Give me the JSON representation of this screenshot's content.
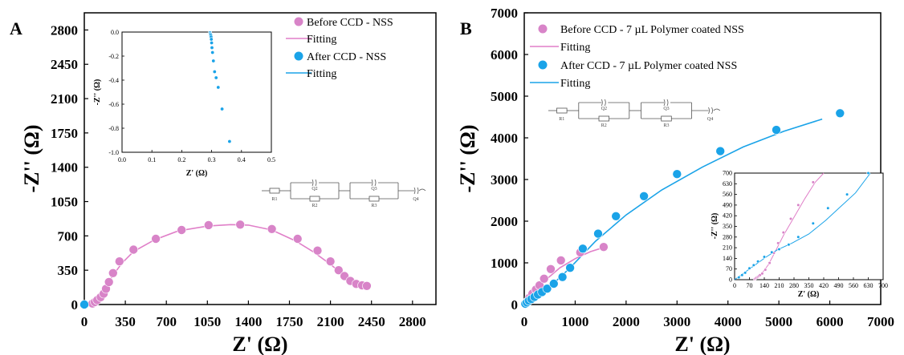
{
  "chart_data": [
    {
      "panel": "A",
      "type": "scatter",
      "xlabel": "Z' (Ω)",
      "ylabel": "-Z'' (Ω)",
      "xlim": [
        0,
        3000
      ],
      "ylim": [
        0,
        2975
      ],
      "xticks": [
        0,
        350,
        700,
        1050,
        1400,
        1750,
        2100,
        2450,
        2800
      ],
      "yticks": [
        0,
        350,
        700,
        1050,
        1400,
        1750,
        2100,
        2450,
        2800
      ],
      "legend": {
        "position": "top-right",
        "entries": [
          "Before CCD -  NSS",
          "Fitting",
          "After CCD - NSS",
          "Fitting"
        ]
      },
      "series": [
        {
          "name": "Before CCD -  NSS",
          "kind": "points",
          "color": "#d884c8",
          "x": [
            70,
            90,
            110,
            140,
            165,
            185,
            210,
            245,
            300,
            420,
            610,
            830,
            1060,
            1330,
            1600,
            1820,
            1990,
            2100,
            2170,
            2220,
            2270,
            2320,
            2370,
            2410
          ],
          "y": [
            10,
            25,
            45,
            75,
            110,
            160,
            230,
            320,
            440,
            560,
            670,
            760,
            810,
            815,
            770,
            670,
            550,
            440,
            350,
            290,
            240,
            210,
            195,
            190
          ]
        },
        {
          "name": "Fitting",
          "kind": "line",
          "color": "#e07fc8",
          "x": [
            70,
            120,
            180,
            240,
            320,
            420,
            600,
            800,
            1050,
            1250,
            1400,
            1600,
            1800,
            1950,
            2100,
            2200,
            2280,
            2360,
            2420
          ],
          "y": [
            0,
            60,
            160,
            290,
            420,
            540,
            660,
            750,
            800,
            815,
            810,
            760,
            650,
            540,
            410,
            310,
            250,
            205,
            190
          ]
        },
        {
          "name": "After CCD - NSS",
          "kind": "points",
          "color": "#1aa3e8",
          "x": [
            0.3
          ],
          "y": [
            0.0
          ]
        }
      ],
      "inset": {
        "xlabel": "Z' (Ω)",
        "ylabel": "-Z'' (Ω)",
        "xlim": [
          0,
          0.5
        ],
        "ylim": [
          -1.0,
          0
        ],
        "xticks": [
          0.0,
          0.1,
          0.2,
          0.3,
          0.4,
          0.5
        ],
        "yticks": [
          0.0,
          -0.2,
          -0.4,
          -0.6,
          -0.8,
          -1.0
        ],
        "series": [
          {
            "name": "After CCD - NSS",
            "kind": "points",
            "color": "#1aa3e8",
            "x": [
              0.295,
              0.296,
              0.297,
              0.298,
              0.299,
              0.3,
              0.301,
              0.303,
              0.306,
              0.31,
              0.315,
              0.322,
              0.335,
              0.36
            ],
            "y": [
              -0.005,
              -0.015,
              -0.025,
              -0.04,
              -0.06,
              -0.09,
              -0.13,
              -0.17,
              -0.24,
              -0.33,
              -0.38,
              -0.46,
              -0.64,
              -0.91
            ]
          }
        ]
      },
      "circuit_labels": [
        "R1",
        "Q2",
        "R2",
        "Q3",
        "R3",
        "Q4"
      ]
    },
    {
      "panel": "B",
      "type": "scatter",
      "xlabel": "Z' (Ω)",
      "ylabel": "-Z'' (Ω)",
      "xlim": [
        0,
        7000
      ],
      "ylim": [
        0,
        7000
      ],
      "xticks": [
        0,
        1000,
        2000,
        3000,
        4000,
        5000,
        6000,
        7000
      ],
      "yticks": [
        0,
        1000,
        2000,
        3000,
        4000,
        5000,
        6000,
        7000
      ],
      "legend": {
        "position": "top-left",
        "entries": [
          "Before CCD - 7 µL Polymer coated NSS",
          "Fitting",
          "After CCD - 7 µL Polymer coated NSS",
          "Fitting"
        ]
      },
      "series": [
        {
          "name": "Before CCD - 7 µL Polymer coated NSS",
          "kind": "points",
          "color": "#d884c8",
          "x": [
            50,
            100,
            160,
            230,
            300,
            390,
            520,
            720,
            1100,
            1560
          ],
          "y": [
            60,
            160,
            260,
            360,
            460,
            620,
            850,
            1060,
            1250,
            1380
          ]
        },
        {
          "name": "Fitting",
          "kind": "line",
          "color": "#e07fc8",
          "x": [
            0,
            100,
            250,
            450,
            700,
            1000,
            1300,
            1560
          ],
          "y": [
            0,
            180,
            380,
            620,
            880,
            1100,
            1270,
            1370
          ]
        },
        {
          "name": "After CCD - 7 µL Polymer coated NSS",
          "kind": "points",
          "color": "#1aa3e8",
          "x": [
            20,
            50,
            90,
            140,
            200,
            270,
            350,
            450,
            580,
            750,
            900,
            1150,
            1450,
            1800,
            2350,
            3000,
            3850,
            4950,
            6200
          ],
          "y": [
            20,
            50,
            90,
            130,
            180,
            240,
            300,
            380,
            500,
            660,
            880,
            1340,
            1700,
            2120,
            2600,
            3130,
            3680,
            4190,
            4590
          ]
        },
        {
          "name": "Fitting",
          "kind": "line",
          "color": "#1aa3e8",
          "x": [
            0,
            200,
            500,
            900,
            1400,
            2000,
            2700,
            3500,
            4300,
            5100,
            5850
          ],
          "y": [
            0,
            150,
            420,
            880,
            1520,
            2150,
            2750,
            3300,
            3780,
            4160,
            4450
          ]
        }
      ],
      "inset": {
        "xlabel": "Z' (Ω)",
        "ylabel": "-Z'' (Ω)",
        "xlim": [
          0,
          700
        ],
        "ylim": [
          0,
          700
        ],
        "xticks": [
          0,
          70,
          140,
          210,
          280,
          350,
          420,
          490,
          560,
          630,
          700
        ],
        "yticks": [
          0,
          70,
          140,
          210,
          280,
          350,
          420,
          490,
          560,
          630,
          700
        ],
        "series": [
          {
            "name": "Before CCD - 7 µL Polymer coated NSS",
            "kind": "points",
            "color": "#d884c8",
            "x": [
              95,
              100,
              105,
              110,
              115,
              120,
              130,
              145,
              165,
              185,
              205,
              230,
              265,
              300,
              370
            ],
            "y": [
              5,
              10,
              15,
              20,
              25,
              30,
              40,
              65,
              110,
              175,
              240,
              310,
              400,
              490,
              640
            ]
          },
          {
            "name": "Fitting",
            "kind": "line",
            "color": "#e07fc8",
            "x": [
              90,
              110,
              130,
              160,
              190,
              230,
              280,
              330,
              380,
              420
            ],
            "y": [
              0,
              20,
              45,
              100,
              180,
              290,
              410,
              530,
              640,
              700
            ]
          },
          {
            "name": "After CCD - 7 µL Polymer coated NSS",
            "kind": "points",
            "color": "#1aa3e8",
            "x": [
              20,
              35,
              50,
              70,
              90,
              110,
              140,
              175,
              210,
              255,
              300,
              370,
              440,
              530,
              630
            ],
            "y": [
              15,
              30,
              45,
              75,
              95,
              120,
              150,
              180,
              200,
              230,
              280,
              370,
              470,
              560,
              700
            ]
          },
          {
            "name": "Fitting",
            "kind": "line",
            "color": "#1aa3e8",
            "x": [
              0,
              50,
              100,
              150,
              200,
              270,
              350,
              430,
              500,
              570,
              640
            ],
            "y": [
              0,
              50,
              100,
              150,
              195,
              240,
              300,
              390,
              480,
              570,
              700
            ]
          }
        ]
      },
      "circuit_labels": [
        "R1",
        "Q2",
        "R2",
        "Q3",
        "R3",
        "Q4"
      ]
    }
  ]
}
